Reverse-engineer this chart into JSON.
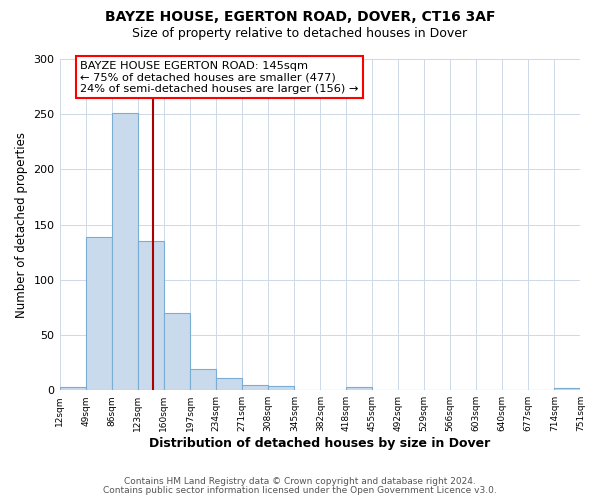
{
  "title": "BAYZE HOUSE, EGERTON ROAD, DOVER, CT16 3AF",
  "subtitle": "Size of property relative to detached houses in Dover",
  "xlabel": "Distribution of detached houses by size in Dover",
  "ylabel": "Number of detached properties",
  "bar_edges": [
    12,
    49,
    86,
    123,
    160,
    197,
    234,
    271,
    308,
    345,
    382,
    418,
    455,
    492,
    529,
    566,
    603,
    640,
    677,
    714,
    751
  ],
  "bar_heights": [
    3,
    139,
    251,
    135,
    70,
    19,
    11,
    5,
    4,
    0,
    0,
    3,
    0,
    0,
    0,
    0,
    0,
    0,
    0,
    2
  ],
  "bar_color": "#c9daed",
  "bar_edge_color": "#7aadd4",
  "vline_x": 145,
  "vline_color": "#aa0000",
  "annotation_line1": "BAYZE HOUSE EGERTON ROAD: 145sqm",
  "annotation_line2": "← 75% of detached houses are smaller (477)",
  "annotation_line3": "24% of semi-detached houses are larger (156) →",
  "ylim": [
    0,
    300
  ],
  "yticks": [
    0,
    50,
    100,
    150,
    200,
    250,
    300
  ],
  "footnote1": "Contains HM Land Registry data © Crown copyright and database right 2024.",
  "footnote2": "Contains public sector information licensed under the Open Government Licence v3.0.",
  "background_color": "#ffffff",
  "grid_color": "#cdd9e8"
}
